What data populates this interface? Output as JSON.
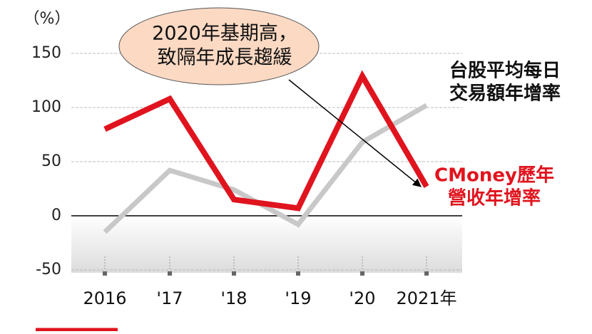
{
  "chart_data": {
    "type": "line",
    "y_unit": "（%）",
    "categories": [
      "2016",
      "'17",
      "'18",
      "'19",
      "'20",
      "2021年"
    ],
    "series": [
      {
        "name": [
          "台股平均每日",
          "交易額年增率"
        ],
        "color": "#c8c8c8",
        "values": [
          -15,
          42,
          24,
          -8,
          68,
          102
        ]
      },
      {
        "name": [
          "CMoney歷年",
          "營收年增率"
        ],
        "color": "#e0141e",
        "values": [
          80,
          108,
          15,
          7,
          129,
          27
        ]
      }
    ],
    "annotation": [
      "2020年基期高，",
      "致隔年成長趨緩"
    ],
    "ylim": [
      -50,
      150
    ],
    "yticks": [
      150,
      100,
      50,
      0,
      -50
    ],
    "grid": true
  }
}
